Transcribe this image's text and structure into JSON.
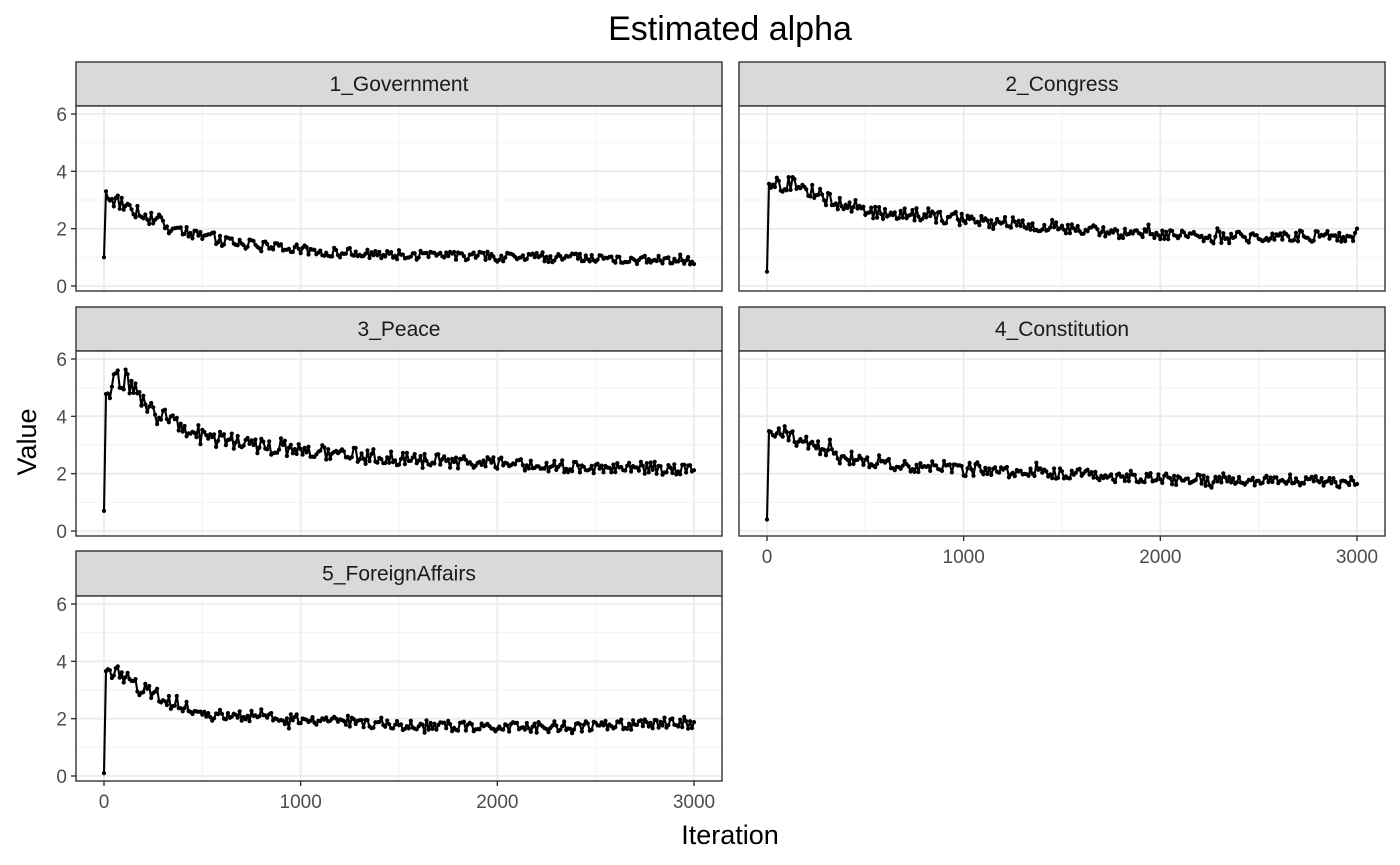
{
  "chart_data": {
    "type": "line",
    "title": "Estimated alpha",
    "xlabel": "Iteration",
    "ylabel": "Value",
    "xlim": [
      0,
      3000
    ],
    "ylim": [
      0,
      6
    ],
    "x_ticks": [
      0,
      1000,
      2000,
      3000
    ],
    "y_ticks": [
      0,
      2,
      4,
      6
    ],
    "grid": true,
    "markers": true,
    "series_color": "#000000",
    "panels": [
      {
        "name": "1_Government",
        "x": [
          0,
          10,
          50,
          100,
          150,
          200,
          300,
          400,
          500,
          600,
          800,
          1000,
          1250,
          1500,
          1750,
          2000,
          2250,
          2500,
          2750,
          3000
        ],
        "values": [
          1.0,
          3.2,
          3.0,
          2.85,
          2.7,
          2.5,
          2.2,
          1.95,
          1.75,
          1.6,
          1.42,
          1.25,
          1.15,
          1.1,
          1.05,
          1.03,
          1.0,
          0.95,
          0.9,
          0.88
        ]
      },
      {
        "name": "2_Congress",
        "x": [
          0,
          10,
          50,
          100,
          150,
          200,
          300,
          400,
          500,
          600,
          800,
          1000,
          1250,
          1500,
          1750,
          2000,
          2250,
          2500,
          2750,
          3000
        ],
        "values": [
          0.5,
          3.4,
          3.55,
          3.6,
          3.5,
          3.35,
          3.1,
          2.8,
          2.6,
          2.5,
          2.45,
          2.35,
          2.15,
          2.05,
          1.9,
          1.8,
          1.7,
          1.7,
          1.72,
          1.72
        ]
      },
      {
        "name": "3_Peace",
        "x": [
          0,
          10,
          50,
          100,
          150,
          200,
          300,
          400,
          500,
          600,
          800,
          1000,
          1250,
          1500,
          1750,
          2000,
          2250,
          2500,
          2750,
          3000
        ],
        "values": [
          0.7,
          4.5,
          5.4,
          5.2,
          4.9,
          4.5,
          4.0,
          3.6,
          3.35,
          3.2,
          2.95,
          2.8,
          2.65,
          2.5,
          2.4,
          2.35,
          2.25,
          2.2,
          2.15,
          2.1
        ]
      },
      {
        "name": "4_Constitution",
        "x": [
          0,
          10,
          50,
          100,
          150,
          200,
          300,
          400,
          500,
          600,
          800,
          1000,
          1250,
          1500,
          1750,
          2000,
          2250,
          2500,
          2750,
          3000
        ],
        "values": [
          0.4,
          3.3,
          3.5,
          3.4,
          3.3,
          3.05,
          2.8,
          2.55,
          2.45,
          2.35,
          2.25,
          2.15,
          2.05,
          2.0,
          1.9,
          1.85,
          1.8,
          1.78,
          1.75,
          1.7
        ]
      },
      {
        "name": "5_ForeignAffairs",
        "x": [
          0,
          10,
          50,
          100,
          150,
          200,
          300,
          400,
          500,
          600,
          800,
          1000,
          1250,
          1500,
          1750,
          2000,
          2250,
          2500,
          2750,
          3000
        ],
        "values": [
          0.1,
          3.4,
          3.7,
          3.55,
          3.3,
          3.0,
          2.7,
          2.45,
          2.25,
          2.15,
          2.05,
          1.95,
          1.85,
          1.8,
          1.72,
          1.68,
          1.7,
          1.75,
          1.8,
          1.85
        ]
      }
    ]
  }
}
